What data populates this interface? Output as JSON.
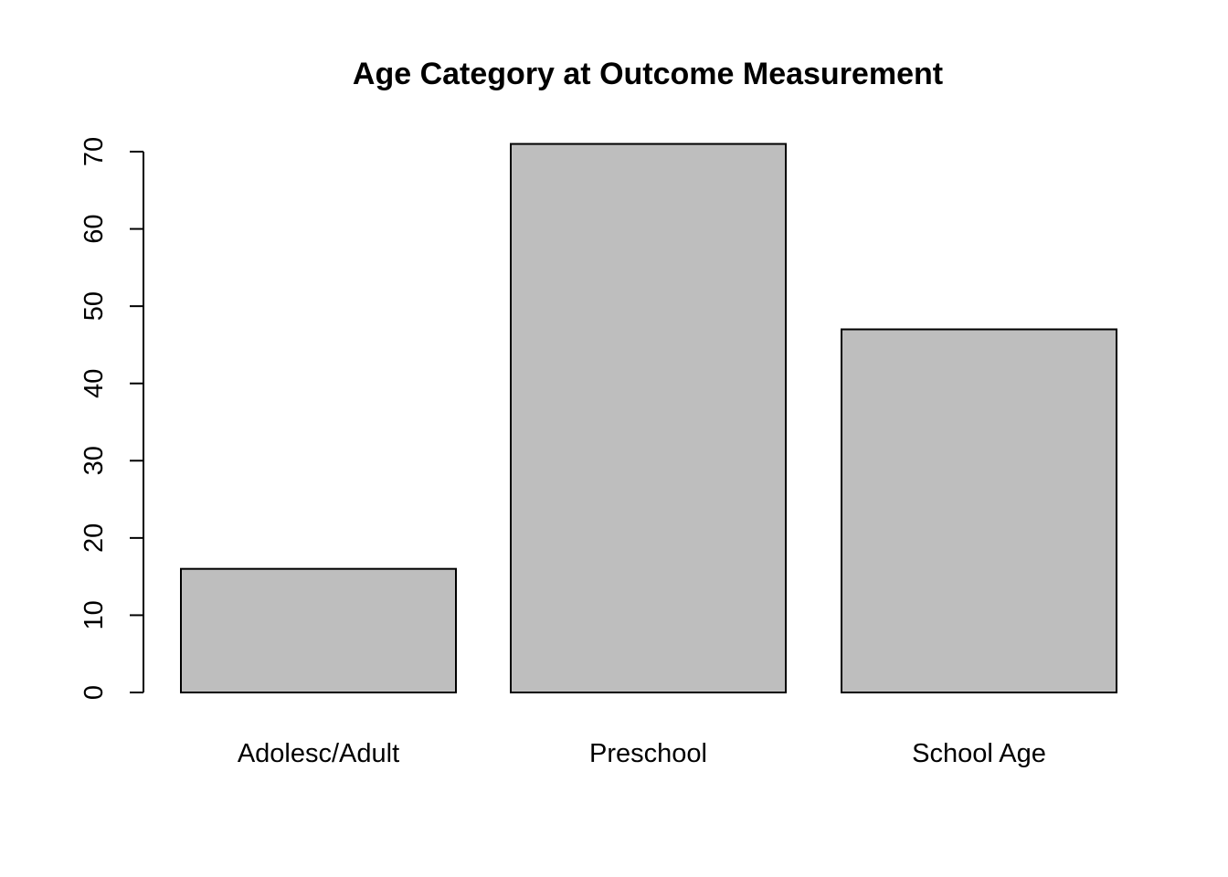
{
  "chart_data": {
    "type": "bar",
    "title": "Age Category at Outcome Measurement",
    "xlabel": "",
    "ylabel": "",
    "categories": [
      "Adolesc/Adult",
      "Preschool",
      "School Age"
    ],
    "values": [
      16,
      71,
      47
    ],
    "yticks": [
      0,
      10,
      20,
      30,
      40,
      50,
      60,
      70
    ],
    "ylim": [
      0,
      70
    ],
    "grid": false,
    "legend": "none",
    "bar_fill": "#bebebe",
    "bar_stroke": "#000000"
  }
}
